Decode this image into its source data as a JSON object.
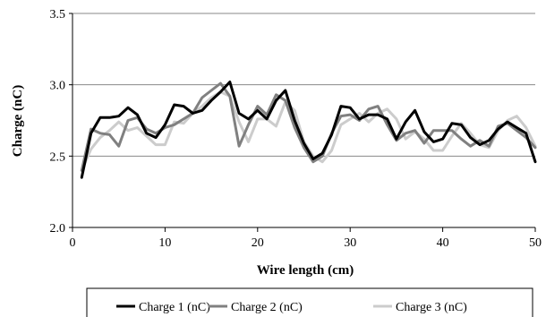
{
  "chart_data": {
    "type": "line",
    "title": "",
    "xlabel": "Wire length (cm)",
    "ylabel": "Charge (nC)",
    "xlim": [
      0,
      50
    ],
    "ylim": [
      2.0,
      3.5
    ],
    "xticks": [
      0,
      10,
      20,
      30,
      40,
      50
    ],
    "xtick_labels": [
      "0",
      "10",
      "20",
      "30",
      "40",
      "50"
    ],
    "yticks": [
      2.0,
      2.5,
      3.0,
      3.5
    ],
    "ytick_labels": [
      "2.0",
      "2.5",
      "3.0",
      "3.5"
    ],
    "grid": "horizontal",
    "legend_position": "bottom",
    "x": [
      1,
      2,
      3,
      4,
      5,
      6,
      7,
      8,
      9,
      10,
      11,
      12,
      13,
      14,
      15,
      16,
      17,
      18,
      19,
      20,
      21,
      22,
      23,
      24,
      25,
      26,
      27,
      28,
      29,
      30,
      31,
      32,
      33,
      34,
      35,
      36,
      37,
      38,
      39,
      40,
      41,
      42,
      43,
      44,
      45,
      46,
      47,
      48,
      49,
      50
    ],
    "series": [
      {
        "name": "Charge 1 (nC)",
        "color": "#000000",
        "values": [
          2.35,
          2.66,
          2.77,
          2.77,
          2.78,
          2.84,
          2.79,
          2.66,
          2.63,
          2.72,
          2.86,
          2.85,
          2.8,
          2.82,
          2.89,
          2.95,
          3.02,
          2.8,
          2.76,
          2.82,
          2.76,
          2.89,
          2.96,
          2.75,
          2.59,
          2.48,
          2.52,
          2.65,
          2.85,
          2.84,
          2.76,
          2.79,
          2.79,
          2.76,
          2.62,
          2.74,
          2.82,
          2.67,
          2.6,
          2.62,
          2.73,
          2.72,
          2.63,
          2.58,
          2.61,
          2.69,
          2.74,
          2.7,
          2.66,
          2.46
        ]
      },
      {
        "name": "Charge 2 (nC)",
        "color": "#808080",
        "values": [
          2.4,
          2.69,
          2.66,
          2.65,
          2.57,
          2.75,
          2.77,
          2.69,
          2.66,
          2.7,
          2.72,
          2.76,
          2.8,
          2.91,
          2.96,
          3.01,
          2.92,
          2.57,
          2.72,
          2.85,
          2.79,
          2.93,
          2.89,
          2.7,
          2.56,
          2.46,
          2.5,
          2.66,
          2.78,
          2.79,
          2.75,
          2.83,
          2.85,
          2.72,
          2.61,
          2.66,
          2.68,
          2.59,
          2.68,
          2.68,
          2.68,
          2.62,
          2.57,
          2.61,
          2.57,
          2.71,
          2.73,
          2.68,
          2.63,
          2.56
        ]
      },
      {
        "name": "Charge 3  (nC)",
        "color": "#cccccc",
        "values": [
          2.4,
          2.55,
          2.63,
          2.68,
          2.74,
          2.68,
          2.7,
          2.64,
          2.58,
          2.58,
          2.74,
          2.73,
          2.8,
          2.85,
          2.91,
          2.95,
          2.92,
          2.74,
          2.6,
          2.76,
          2.76,
          2.71,
          2.88,
          2.82,
          2.6,
          2.5,
          2.46,
          2.54,
          2.72,
          2.76,
          2.8,
          2.74,
          2.8,
          2.83,
          2.76,
          2.62,
          2.67,
          2.62,
          2.54,
          2.54,
          2.64,
          2.73,
          2.66,
          2.58,
          2.56,
          2.68,
          2.75,
          2.78,
          2.7,
          2.57
        ]
      }
    ]
  }
}
